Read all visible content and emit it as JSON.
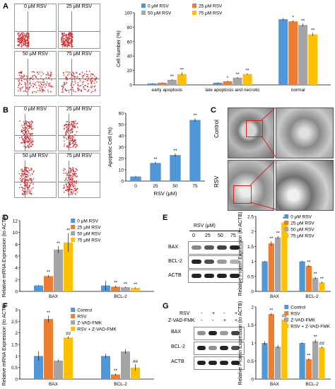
{
  "panels": {
    "a": "A",
    "b": "B",
    "c": "C",
    "d": "D",
    "e": "E",
    "f": "F",
    "g": "G"
  },
  "flow_a": [
    "0 μM RSV",
    "25 μM RSV",
    "50 μM RSV",
    "75 μM RSV"
  ],
  "flow_b": [
    "0 μM RSV",
    "25 μM RSV",
    "50 μM RSV",
    "75 μM RSV"
  ],
  "tem": {
    "control": "Control",
    "rsv": "RSV"
  },
  "blot_e": {
    "title": "RSV (μM)",
    "lanes": [
      "0",
      "25",
      "50",
      "75"
    ],
    "rows": [
      "BAX",
      "BCL-2",
      "ACTB"
    ]
  },
  "blot_g": {
    "rows_top": [
      "RSV",
      "Z-VAD-FMK"
    ],
    "signs": [
      [
        "-",
        "+",
        "-",
        "+"
      ],
      [
        "-",
        "-",
        "+",
        "+"
      ]
    ],
    "rows": [
      "BAX",
      "BCL-2",
      "ACTB"
    ]
  },
  "chart_data": [
    {
      "panel": "A",
      "type": "bar",
      "categories": [
        "early apoptosis",
        "late apoptosis and necrotic",
        "normal"
      ],
      "series": [
        {
          "name": "0 μM RSV",
          "values": [
            2,
            3,
            91
          ],
          "err": [
            0.5,
            0.5,
            1.5
          ]
        },
        {
          "name": "25 μM RSV",
          "values": [
            3,
            5,
            88
          ],
          "err": [
            0.5,
            0.8,
            1.5
          ]
        },
        {
          "name": "50 μM RSV",
          "values": [
            7,
            10,
            83
          ],
          "err": [
            1,
            1,
            2
          ]
        },
        {
          "name": "75 μM RSV",
          "values": [
            15,
            15,
            70
          ],
          "err": [
            2,
            1,
            2
          ]
        }
      ],
      "stars": [
        [
          "",
          "",
          ""
        ],
        [
          "",
          "*",
          "*"
        ],
        [
          "**",
          "**",
          "**"
        ],
        [
          "**",
          "**",
          "**"
        ]
      ],
      "ylabel": "Cell Number (%)",
      "ylim": [
        0,
        100
      ],
      "yticks": [
        0,
        20,
        40,
        60,
        80,
        100
      ]
    },
    {
      "panel": "B",
      "type": "bar",
      "categories": [
        "0",
        "25",
        "50",
        "75"
      ],
      "values": [
        4,
        16,
        23,
        54
      ],
      "err": [
        0.5,
        1,
        1.5,
        1.5
      ],
      "stars": [
        "",
        "**",
        "**",
        "**"
      ],
      "xlabel": "RSV (μM)",
      "ylabel": "Apoptotic Cell (%)",
      "ylim": [
        0,
        60
      ],
      "yticks": [
        0,
        10,
        20,
        30,
        40,
        50,
        60
      ]
    },
    {
      "panel": "D",
      "type": "bar",
      "categories": [
        "BAX",
        "BCL-2"
      ],
      "series": [
        {
          "name": "0 μM RSV",
          "values": [
            1,
            1
          ],
          "err": [
            0.1,
            0.8
          ]
        },
        {
          "name": "25 μM RSV",
          "values": [
            2.6,
            0.8
          ],
          "err": [
            0.2,
            0.2
          ]
        },
        {
          "name": "50 μM RSV",
          "values": [
            7.1,
            0.7
          ],
          "err": [
            0.6,
            0.1
          ]
        },
        {
          "name": "75 μM RSV",
          "values": [
            8.3,
            0.6
          ],
          "err": [
            1.6,
            0.1
          ]
        }
      ],
      "stars": [
        [
          "",
          ""
        ],
        [
          "**",
          "**"
        ],
        [
          "**",
          "**"
        ],
        [
          "**",
          "**"
        ]
      ],
      "ylabel": "Relative mRNA Expression (to ACTB)",
      "ylim": [
        0,
        12
      ],
      "yticks": [
        0,
        2,
        4,
        6,
        8,
        10,
        12
      ]
    },
    {
      "panel": "E",
      "type": "bar",
      "categories": [
        "BAX",
        "BCL-2"
      ],
      "series": [
        {
          "name": "0 μM RSV",
          "values": [
            1,
            1
          ],
          "err": [
            0.02,
            0.02
          ]
        },
        {
          "name": "25 μM RSV",
          "values": [
            1.6,
            0.85
          ],
          "err": [
            0.08,
            0.04
          ]
        },
        {
          "name": "50 μM RSV",
          "values": [
            1.8,
            0.45
          ],
          "err": [
            0.05,
            0.04
          ]
        },
        {
          "name": "75 μM RSV",
          "values": [
            2.3,
            0.3
          ],
          "err": [
            0.03,
            0.03
          ]
        }
      ],
      "stars": [
        [
          "",
          ""
        ],
        [
          "**",
          "**"
        ],
        [
          "**",
          "**"
        ],
        [
          "**",
          "**"
        ]
      ],
      "ylabel": "Relative Protein Expression (to ACTB)",
      "ylim": [
        0,
        2.5
      ],
      "yticks": [
        0,
        0.5,
        1,
        1.5,
        2,
        2.5
      ]
    },
    {
      "panel": "F",
      "type": "bar",
      "categories": [
        "BAX",
        "BCL-2"
      ],
      "series": [
        {
          "name": "Control",
          "values": [
            1,
            1
          ],
          "err": [
            0.2,
            0.1
          ]
        },
        {
          "name": "RSV",
          "values": [
            2.6,
            0.2
          ],
          "err": [
            0.15,
            0.05
          ]
        },
        {
          "name": "Z-VAD-FMK",
          "values": [
            0.8,
            1.2
          ],
          "err": [
            0.05,
            0.1
          ]
        },
        {
          "name": "RSV + Z-VAD-FMK",
          "values": [
            1.8,
            0.5
          ],
          "err": [
            0.05,
            0.15
          ]
        }
      ],
      "stars": [
        [
          "",
          ""
        ],
        [
          "**",
          "**"
        ],
        [
          "",
          ""
        ],
        [
          "##",
          "##"
        ]
      ],
      "ylabel": "Relative mRNA Expression (to ACTB)",
      "ylim": [
        0,
        3
      ],
      "yticks": [
        0,
        0.5,
        1,
        1.5,
        2,
        2.5,
        3
      ]
    },
    {
      "panel": "G",
      "type": "bar",
      "categories": [
        "BAX",
        "BCL-2"
      ],
      "series": [
        {
          "name": "Control",
          "values": [
            1,
            1
          ],
          "err": [
            0.05,
            0.02
          ]
        },
        {
          "name": "RSV",
          "values": [
            1.8,
            0.55
          ],
          "err": [
            0.03,
            0.03
          ]
        },
        {
          "name": "Z-VAD-FMK",
          "values": [
            0.9,
            1.05
          ],
          "err": [
            0.05,
            0.05
          ]
        },
        {
          "name": "RSV + Z-VAD-FMK",
          "values": [
            1.65,
            0.88
          ],
          "err": [
            0.03,
            0.03
          ]
        }
      ],
      "stars": [
        [
          "",
          ""
        ],
        [
          "**",
          "**"
        ],
        [
          "",
          "**"
        ],
        [
          "##",
          "##"
        ]
      ],
      "ylabel": "Relative Protein Expression (to ACTB)",
      "ylim": [
        0,
        2
      ],
      "yticks": [
        0,
        0.5,
        1,
        1.5,
        2
      ]
    }
  ],
  "colors": {
    "c0": "#4f97d6",
    "c1": "#ed7d31",
    "c2": "#a5a5a5",
    "c3": "#ffc000",
    "dots": "#d8262b"
  }
}
